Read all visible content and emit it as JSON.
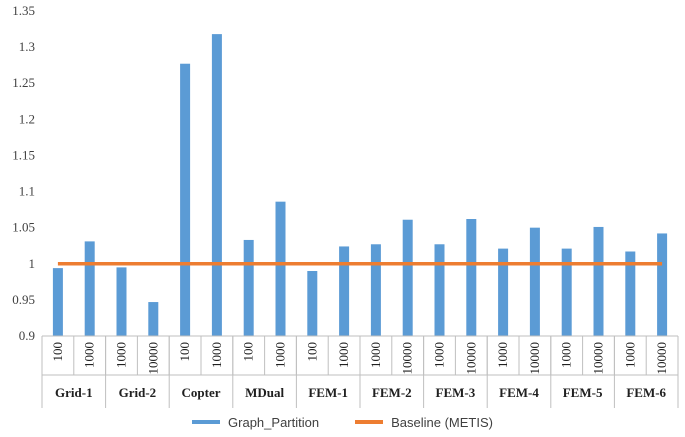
{
  "chart_data": {
    "type": "bar",
    "ylim": [
      0.9,
      1.35
    ],
    "yticks": [
      "0.9",
      "0.95",
      "1",
      "1.05",
      "1.1",
      "1.15",
      "1.2",
      "1.25",
      "1.3",
      "1.35"
    ],
    "categories": [
      "100",
      "1000",
      "1000",
      "10000",
      "100",
      "1000",
      "100",
      "1000",
      "100",
      "1000",
      "1000",
      "10000",
      "1000",
      "10000",
      "1000",
      "10000",
      "1000",
      "10000",
      "1000",
      "10000"
    ],
    "groups": [
      {
        "label": "Grid-1",
        "span": 2
      },
      {
        "label": "Grid-2",
        "span": 2
      },
      {
        "label": "Copter",
        "span": 2
      },
      {
        "label": "MDual",
        "span": 2
      },
      {
        "label": "FEM-1",
        "span": 2
      },
      {
        "label": "FEM-2",
        "span": 2
      },
      {
        "label": "FEM-3",
        "span": 2
      },
      {
        "label": "FEM-4",
        "span": 2
      },
      {
        "label": "FEM-5",
        "span": 2
      },
      {
        "label": "FEM-6",
        "span": 2
      }
    ],
    "series": [
      {
        "name": "Graph_Partition",
        "type": "bar",
        "color": "#5B9BD5",
        "values": [
          0.994,
          1.031,
          0.995,
          0.947,
          1.277,
          1.318,
          1.033,
          1.086,
          0.99,
          1.024,
          1.027,
          1.061,
          1.027,
          1.062,
          1.021,
          1.05,
          1.021,
          1.051,
          1.017,
          1.042
        ]
      },
      {
        "name": "Baseline (METIS)",
        "type": "line",
        "color": "#ED7D31",
        "values": [
          1,
          1,
          1,
          1,
          1,
          1,
          1,
          1,
          1,
          1,
          1,
          1,
          1,
          1,
          1,
          1,
          1,
          1,
          1,
          1
        ]
      }
    ],
    "grid": false,
    "legend_position": "bottom"
  }
}
